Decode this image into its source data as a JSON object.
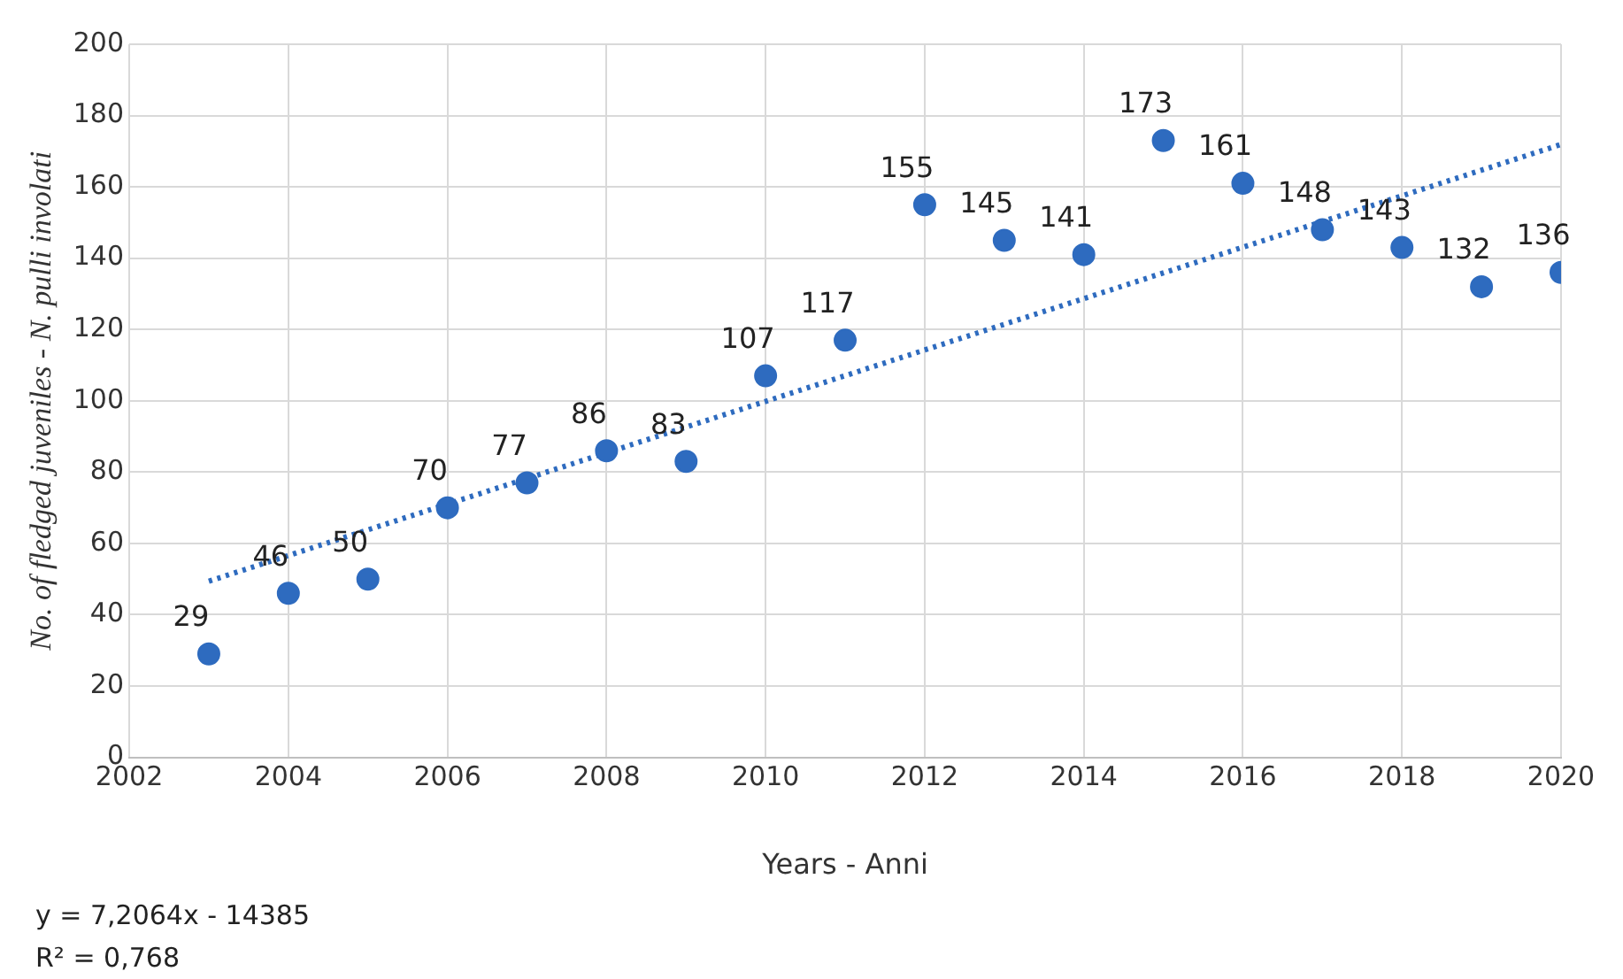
{
  "chart_data": {
    "type": "scatter",
    "xlabel": "Years - Anni",
    "ylabel": "No. of fledged juveniles - N. pulli involati",
    "x": [
      2003,
      2004,
      2005,
      2006,
      2007,
      2008,
      2009,
      2010,
      2011,
      2012,
      2013,
      2014,
      2015,
      2016,
      2017,
      2018,
      2019,
      2020
    ],
    "series": [
      {
        "color": "#2e6bbf",
        "data_labels": true,
        "values": [
          29,
          46,
          50,
          70,
          77,
          86,
          83,
          107,
          117,
          155,
          145,
          141,
          173,
          161,
          148,
          143,
          132,
          136
        ]
      },
      {
        "type": "line",
        "color": "#2e6bbf",
        "line_style": "dotted",
        "marker": "none",
        "x": [
          2003,
          2020
        ],
        "values": [
          49.4,
          171.9
        ]
      }
    ],
    "marker": "circle",
    "xlim": [
      2002,
      2020
    ],
    "xticks": [
      2002,
      2004,
      2006,
      2008,
      2010,
      2012,
      2014,
      2016,
      2018,
      2020
    ],
    "ylim": [
      0,
      200
    ],
    "yticks": [
      0,
      20,
      40,
      60,
      80,
      100,
      120,
      140,
      160,
      180,
      200
    ],
    "grid": true,
    "legend": false,
    "annotations": [
      "y = 7,2064x - 14385",
      "R² = 0,768"
    ]
  }
}
